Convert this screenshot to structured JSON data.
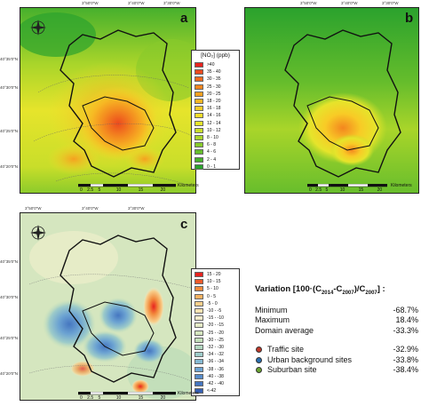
{
  "panels": {
    "a": {
      "label": "a",
      "legend_title": "[NO₂] (ppb)",
      "legend": [
        {
          "label": ">40",
          "color": "#e8231f"
        },
        {
          "label": "35 - 40",
          "color": "#ec4a1e"
        },
        {
          "label": "30 - 35",
          "color": "#f0691e"
        },
        {
          "label": "25 - 30",
          "color": "#f3861f"
        },
        {
          "label": "20 - 25",
          "color": "#f5a020"
        },
        {
          "label": "18 - 20",
          "color": "#f7b623"
        },
        {
          "label": "16 - 18",
          "color": "#f8cb26"
        },
        {
          "label": "14 - 16",
          "color": "#f6dd2a"
        },
        {
          "label": "12 - 14",
          "color": "#e6e42b"
        },
        {
          "label": "10 - 12",
          "color": "#c9de2a"
        },
        {
          "label": "8 - 10",
          "color": "#a9d52a"
        },
        {
          "label": "6 - 8",
          "color": "#88ca2b"
        },
        {
          "label": "4 - 6",
          "color": "#66bd2c"
        },
        {
          "label": "2 - 4",
          "color": "#47b02d"
        },
        {
          "label": "0 - 1",
          "color": "#2ba22d"
        }
      ],
      "lon_labels": [
        "3°50'0\"W",
        "3°40'0\"W",
        "3°30'0\"W"
      ],
      "lat_labels": [
        "40°35'0\"N",
        "40°30'0\"N",
        "40°25'0\"N",
        "40°20'0\"N"
      ],
      "scale": {
        "ticks": [
          "0",
          "2.5",
          "5",
          "10",
          "15",
          "20"
        ],
        "unit": "Kilometers"
      }
    },
    "b": {
      "label": "b",
      "lon_labels": [
        "3°50'0\"W",
        "3°40'0\"W",
        "3°30'0\"W"
      ],
      "scale": {
        "ticks": [
          "0",
          "2.5",
          "5",
          "10",
          "15",
          "20"
        ],
        "unit": "Kilometers"
      }
    },
    "c": {
      "label": "c",
      "legend": [
        {
          "label": "15 - 20",
          "color": "#e8231f"
        },
        {
          "label": "10 - 15",
          "color": "#ee5a2a"
        },
        {
          "label": "5 - 10",
          "color": "#f28a3c"
        },
        {
          "label": "0 - 5",
          "color": "#f6b261"
        },
        {
          "label": "-5 - 0",
          "color": "#f8cf8c"
        },
        {
          "label": "-10 - -5",
          "color": "#f9e3b2"
        },
        {
          "label": "-15 - -10",
          "color": "#f3eccb"
        },
        {
          "label": "-20 - -15",
          "color": "#e6ecc7"
        },
        {
          "label": "-25 - -20",
          "color": "#d5e6bf"
        },
        {
          "label": "-30 - -25",
          "color": "#c3dfba"
        },
        {
          "label": "-32 - -30",
          "color": "#b1d7bf"
        },
        {
          "label": "-34 - -32",
          "color": "#9dcbc9"
        },
        {
          "label": "-36 - -34",
          "color": "#85b9d2"
        },
        {
          "label": "-38 - -36",
          "color": "#6ca3d2"
        },
        {
          "label": "-40 - -38",
          "color": "#568ccb"
        },
        {
          "label": "-42 - -40",
          "color": "#4576c0"
        },
        {
          "label": "<-42",
          "color": "#3660b3"
        }
      ],
      "lon_labels": [
        "3°50'0\"W",
        "3°40'0\"W",
        "3°30'0\"W"
      ],
      "lat_labels": [
        "40°35'0\"N",
        "40°30'0\"N",
        "40°25'0\"N",
        "40°20'0\"N"
      ],
      "scale": {
        "ticks": [
          "0",
          "2.5",
          "5",
          "10",
          "15",
          "20"
        ],
        "unit": "Kilometers"
      }
    }
  },
  "stats": {
    "title_prefix": "Variation [100·(C",
    "sub1": "2014",
    "title_mid": "-C",
    "sub2": "2007",
    "title_mid2": ")/C",
    "sub3": "2007",
    "title_suffix": "] :",
    "rows": [
      {
        "label": "Minimum",
        "value": "-68.7%"
      },
      {
        "label": "Maximum",
        "value": "18.4%"
      },
      {
        "label": "Domain average",
        "value": "-33.3%"
      }
    ],
    "sites": [
      {
        "label": "Traffic site",
        "value": "-32.9%",
        "color": "#c0392b"
      },
      {
        "label": "Urban background sites",
        "value": "-33.8%",
        "color": "#2a6fb0"
      },
      {
        "label": "Suburban site",
        "value": "-38.4%",
        "color": "#6aa532"
      }
    ]
  }
}
